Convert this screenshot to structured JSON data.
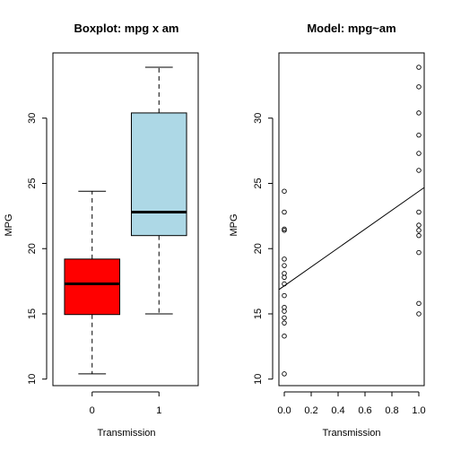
{
  "chart_data": [
    {
      "type": "box",
      "title": "Boxplot: mpg x am",
      "xlabel": "Transmission",
      "ylabel": "MPG",
      "categories": [
        "0",
        "1"
      ],
      "ylim": [
        9.5,
        35
      ],
      "yticks": [
        10,
        15,
        20,
        25,
        30
      ],
      "boxes": [
        {
          "category": "0",
          "min": 10.4,
          "q1": 14.95,
          "median": 17.3,
          "q3": 19.2,
          "max": 24.4,
          "color": "#ff0000"
        },
        {
          "category": "1",
          "min": 15.0,
          "q1": 21.0,
          "median": 22.8,
          "q3": 30.4,
          "max": 33.9,
          "color": "#add8e6"
        }
      ]
    },
    {
      "type": "scatter",
      "title": "Model: mpg~am",
      "xlabel": "Transmission",
      "ylabel": "MPG",
      "xlim": [
        -0.04,
        1.04
      ],
      "ylim": [
        9.5,
        35
      ],
      "xticks": [
        "0.0",
        "0.2",
        "0.4",
        "0.6",
        "0.8",
        "1.0"
      ],
      "yticks": [
        10,
        15,
        20,
        25,
        30
      ],
      "points": [
        {
          "x": 0,
          "y": 24.4
        },
        {
          "x": 0,
          "y": 22.8
        },
        {
          "x": 0,
          "y": 21.5
        },
        {
          "x": 0,
          "y": 21.4
        },
        {
          "x": 0,
          "y": 19.2
        },
        {
          "x": 0,
          "y": 18.7
        },
        {
          "x": 0,
          "y": 18.1
        },
        {
          "x": 0,
          "y": 17.8
        },
        {
          "x": 0,
          "y": 17.3
        },
        {
          "x": 0,
          "y": 16.4
        },
        {
          "x": 0,
          "y": 15.5
        },
        {
          "x": 0,
          "y": 15.2
        },
        {
          "x": 0,
          "y": 14.7
        },
        {
          "x": 0,
          "y": 14.3
        },
        {
          "x": 0,
          "y": 13.3
        },
        {
          "x": 0,
          "y": 10.4
        },
        {
          "x": 1,
          "y": 33.9
        },
        {
          "x": 1,
          "y": 32.4
        },
        {
          "x": 1,
          "y": 30.4
        },
        {
          "x": 1,
          "y": 28.7
        },
        {
          "x": 1,
          "y": 27.3
        },
        {
          "x": 1,
          "y": 26.0
        },
        {
          "x": 1,
          "y": 22.8
        },
        {
          "x": 1,
          "y": 21.8
        },
        {
          "x": 1,
          "y": 21.4
        },
        {
          "x": 1,
          "y": 21.0
        },
        {
          "x": 1,
          "y": 19.7
        },
        {
          "x": 1,
          "y": 15.8
        },
        {
          "x": 1,
          "y": 15.0
        }
      ],
      "fit_line": {
        "intercept": 17.147,
        "slope": 7.245
      }
    }
  ]
}
